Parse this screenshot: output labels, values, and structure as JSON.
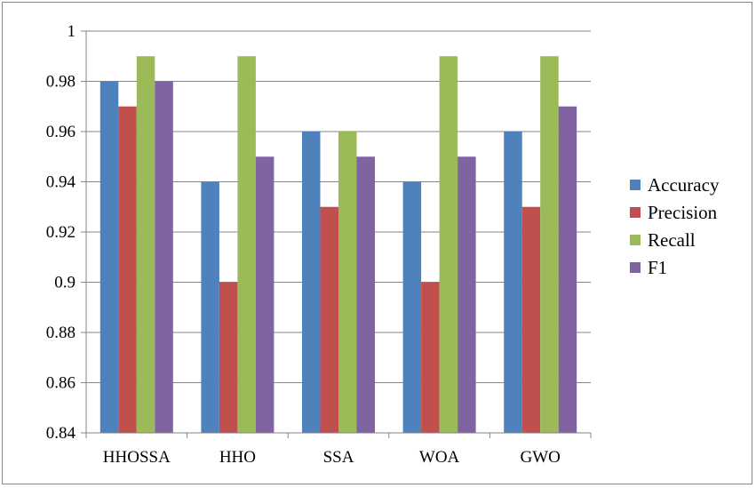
{
  "chart_data": {
    "type": "bar",
    "title": "",
    "xlabel": "",
    "ylabel": "",
    "categories": [
      "HHOSSA",
      "HHO",
      "SSA",
      "WOA",
      "GWO"
    ],
    "ylim": [
      0.84,
      1
    ],
    "yticks": [
      0.84,
      0.86,
      0.88,
      0.9,
      0.92,
      0.94,
      0.96,
      0.98,
      1
    ],
    "ytick_labels": [
      "0.84",
      "0.86",
      "0.88",
      "0.9",
      "0.92",
      "0.94",
      "0.96",
      "0.98",
      "1"
    ],
    "grid": true,
    "legend": "right",
    "series": [
      {
        "name": "Accuracy",
        "color": "#4f81bd",
        "values": [
          0.98,
          0.94,
          0.96,
          0.94,
          0.96
        ]
      },
      {
        "name": "Precision",
        "color": "#c0504d",
        "values": [
          0.97,
          0.9,
          0.93,
          0.9,
          0.93
        ]
      },
      {
        "name": "Recall",
        "color": "#9bbb59",
        "values": [
          0.99,
          0.99,
          0.96,
          0.99,
          0.99
        ]
      },
      {
        "name": "F1",
        "color": "#8064a2",
        "values": [
          0.98,
          0.95,
          0.95,
          0.95,
          0.97
        ]
      }
    ]
  }
}
